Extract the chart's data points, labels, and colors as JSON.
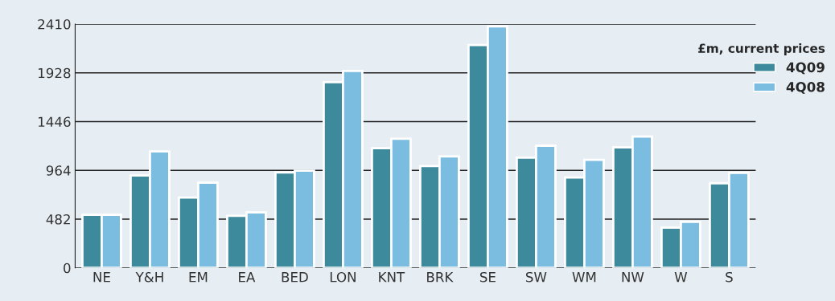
{
  "chart_data": {
    "type": "bar",
    "categories": [
      "NE",
      "Y&H",
      "EM",
      "EA",
      "BED",
      "LON",
      "KNT",
      "BRK",
      "SE",
      "SW",
      "WM",
      "NW",
      "W",
      "S"
    ],
    "series": [
      {
        "name": "4Q09",
        "color": "#3d8a9c",
        "values": [
          524,
          914,
          696,
          514,
          943,
          1835,
          1184,
          1006,
          2203,
          1090,
          894,
          1191,
          398,
          837
        ]
      },
      {
        "name": "4Q08",
        "color": "#7bbde0",
        "values": [
          524,
          1152,
          842,
          548,
          961,
          1946,
          1276,
          1101,
          2388,
          1208,
          1069,
          1298,
          455,
          940
        ]
      }
    ],
    "legend_title": "£m, current prices",
    "ylim": [
      0,
      2410
    ],
    "yticks": [
      0,
      482,
      964,
      1446,
      1928,
      2410
    ],
    "grid": "y",
    "legend": "top right"
  }
}
